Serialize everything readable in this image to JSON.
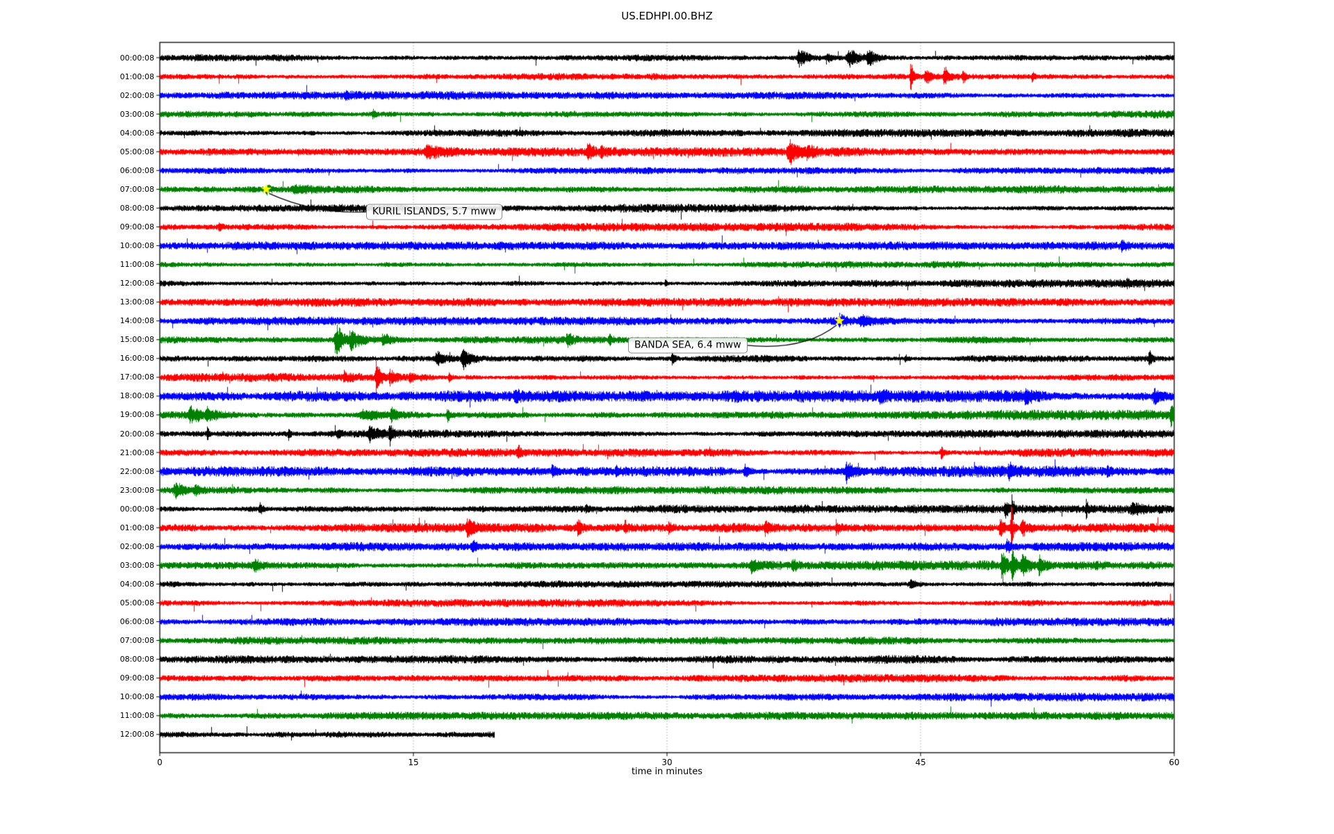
{
  "title": "US.EDHPI.00.BHZ",
  "chart_data": {
    "type": "line",
    "subtype": "helicorder-dayplot",
    "title": "US.EDHPI.00.BHZ",
    "xlabel": "time in minutes",
    "xlim": [
      0,
      60
    ],
    "x_ticks": [
      0,
      15,
      30,
      45,
      60
    ],
    "grid": "vertical dotted gridlines at x ticks",
    "legend": "none",
    "background_color": "#ffffff",
    "grid_color": "#9e9e9e",
    "frame_color": "#000000",
    "star_color": "#ffff00",
    "trace_color_cycle": [
      "#000000",
      "#ff0000",
      "#0000ff",
      "#008000"
    ],
    "row_duration_minutes": 60,
    "events_format": "[start_minute, relative_amplitude, duration_minutes]",
    "rows": [
      {
        "label": "00:00:08",
        "noise": 1.0,
        "events": [
          [
            37.8,
            2.2,
            1.2
          ],
          [
            39.5,
            1.2,
            0.5
          ],
          [
            40.7,
            2.8,
            1.0
          ],
          [
            41.9,
            2.2,
            0.7
          ]
        ]
      },
      {
        "label": "01:00:08",
        "noise": 1.0,
        "events": [
          [
            44.4,
            4.0,
            0.35
          ],
          [
            45.3,
            2.0,
            0.6
          ],
          [
            46.4,
            2.6,
            0.5
          ],
          [
            47.5,
            1.5,
            0.3
          ],
          [
            51.6,
            1.3,
            0.25
          ]
        ]
      },
      {
        "label": "02:00:08",
        "noise": 1.0,
        "events": [
          [
            11.0,
            0.7,
            0.3
          ]
        ]
      },
      {
        "label": "03:00:08",
        "noise": 1.0,
        "events": [
          [
            12.6,
            1.2,
            0.2
          ]
        ]
      },
      {
        "label": "04:00:08",
        "noise": 0.95,
        "events": []
      },
      {
        "label": "05:00:08",
        "noise": 1.1,
        "events": [
          [
            15.8,
            1.4,
            1.5
          ],
          [
            25.3,
            1.9,
            0.5
          ],
          [
            26.1,
            1.2,
            0.4
          ],
          [
            37.2,
            3.4,
            0.9
          ],
          [
            38.3,
            1.6,
            0.5
          ]
        ]
      },
      {
        "label": "06:00:08",
        "noise": 1.0,
        "events": []
      },
      {
        "label": "07:00:08",
        "noise": 1.0,
        "events": [
          [
            6.3,
            1.2,
            0.4
          ],
          [
            8.0,
            0.7,
            3.0
          ]
        ]
      },
      {
        "label": "08:00:08",
        "noise": 1.0,
        "events": []
      },
      {
        "label": "09:00:08",
        "noise": 1.0,
        "events": [
          [
            3.5,
            0.8,
            0.3
          ]
        ]
      },
      {
        "label": "10:00:08",
        "noise": 1.0,
        "events": [
          [
            56.9,
            1.3,
            0.3
          ]
        ]
      },
      {
        "label": "11:00:08",
        "noise": 1.0,
        "events": []
      },
      {
        "label": "12:00:08",
        "noise": 1.0,
        "events": [
          [
            29.9,
            1.0,
            0.15
          ],
          [
            57.2,
            0.9,
            0.2
          ]
        ]
      },
      {
        "label": "13:00:08",
        "noise": 1.0,
        "events": []
      },
      {
        "label": "14:00:08",
        "noise": 1.0,
        "events": [
          [
            40.2,
            1.3,
            0.6
          ],
          [
            41.5,
            0.8,
            2.0
          ]
        ]
      },
      {
        "label": "15:00:08",
        "noise": 1.15,
        "events": [
          [
            10.4,
            4.6,
            0.8
          ],
          [
            11.3,
            2.0,
            1.8
          ],
          [
            13.2,
            1.4,
            0.8
          ],
          [
            24.1,
            1.8,
            0.5
          ],
          [
            26.6,
            1.2,
            0.3
          ]
        ]
      },
      {
        "label": "16:00:08",
        "noise": 1.05,
        "events": [
          [
            16.4,
            1.6,
            1.2
          ],
          [
            17.9,
            3.0,
            0.7
          ],
          [
            30.3,
            1.9,
            0.25
          ],
          [
            44.1,
            0.9,
            0.3
          ],
          [
            58.5,
            2.3,
            0.3
          ]
        ]
      },
      {
        "label": "17:00:08",
        "noise": 1.0,
        "events": [
          [
            10.9,
            1.5,
            0.4
          ],
          [
            12.8,
            4.5,
            0.45
          ],
          [
            13.6,
            1.9,
            0.5
          ],
          [
            14.8,
            1.2,
            0.4
          ],
          [
            17.1,
            1.0,
            0.3
          ]
        ]
      },
      {
        "label": "18:00:08",
        "noise": 1.45,
        "events": [
          [
            21.0,
            1.2,
            0.5
          ],
          [
            28.5,
            0.9,
            0.4
          ],
          [
            34.0,
            1.2,
            0.4
          ],
          [
            42.6,
            1.4,
            0.5
          ],
          [
            51.2,
            1.3,
            0.6
          ],
          [
            58.8,
            1.9,
            1.0
          ]
        ]
      },
      {
        "label": "19:00:08",
        "noise": 1.2,
        "events": [
          [
            1.8,
            1.9,
            1.2
          ],
          [
            2.8,
            1.5,
            0.8
          ],
          [
            12.0,
            1.3,
            2.2
          ],
          [
            13.7,
            1.7,
            0.6
          ],
          [
            17.0,
            2.1,
            0.25
          ],
          [
            59.8,
            2.7,
            0.3
          ]
        ]
      },
      {
        "label": "20:00:08",
        "noise": 1.0,
        "events": [
          [
            2.8,
            1.8,
            0.18
          ],
          [
            7.6,
            1.8,
            0.18
          ],
          [
            10.5,
            1.0,
            0.3
          ],
          [
            12.4,
            1.7,
            0.9
          ],
          [
            13.6,
            2.5,
            0.3
          ]
        ]
      },
      {
        "label": "21:00:08",
        "noise": 1.0,
        "events": [
          [
            21.2,
            1.9,
            0.2
          ],
          [
            46.2,
            2.1,
            0.22
          ]
        ]
      },
      {
        "label": "22:00:08",
        "noise": 1.35,
        "events": [
          [
            23.2,
            1.4,
            0.5
          ],
          [
            27.0,
            1.0,
            0.4
          ],
          [
            34.6,
            1.5,
            0.5
          ],
          [
            40.6,
            2.7,
            0.6
          ],
          [
            50.2,
            1.7,
            0.5
          ],
          [
            56.0,
            1.0,
            0.4
          ]
        ]
      },
      {
        "label": "23:00:08",
        "noise": 1.0,
        "events": [
          [
            0.9,
            1.9,
            1.0
          ],
          [
            2.1,
            1.0,
            0.5
          ]
        ]
      },
      {
        "label": "00:00:08",
        "noise": 1.0,
        "events": [
          [
            5.9,
            1.6,
            0.3
          ],
          [
            25.2,
            1.3,
            0.2
          ],
          [
            50.0,
            2.0,
            0.4
          ],
          [
            50.4,
            4.5,
            0.18
          ],
          [
            54.8,
            3.5,
            0.12
          ],
          [
            57.5,
            1.2,
            1.5
          ]
        ]
      },
      {
        "label": "01:00:08",
        "noise": 1.1,
        "events": [
          [
            18.2,
            2.3,
            0.6
          ],
          [
            24.7,
            1.8,
            0.4
          ],
          [
            27.5,
            1.6,
            0.3
          ],
          [
            30.1,
            1.1,
            0.3
          ],
          [
            35.8,
            1.9,
            0.5
          ],
          [
            40.0,
            1.6,
            0.3
          ],
          [
            49.7,
            2.5,
            0.5
          ],
          [
            50.35,
            7.0,
            0.18
          ],
          [
            51.0,
            2.2,
            0.6
          ]
        ]
      },
      {
        "label": "02:00:08",
        "noise": 1.05,
        "events": [
          [
            18.5,
            1.5,
            0.4
          ],
          [
            50.1,
            1.7,
            0.5
          ]
        ]
      },
      {
        "label": "03:00:08",
        "noise": 1.15,
        "events": [
          [
            5.6,
            1.6,
            0.6
          ],
          [
            35.0,
            2.0,
            0.8
          ],
          [
            37.4,
            1.6,
            0.4
          ],
          [
            49.8,
            4.2,
            0.5
          ],
          [
            50.4,
            5.0,
            0.3
          ],
          [
            51.0,
            2.6,
            0.7
          ],
          [
            52.0,
            2.0,
            0.5
          ]
        ]
      },
      {
        "label": "04:00:08",
        "noise": 0.95,
        "events": [
          [
            44.4,
            1.1,
            0.6
          ]
        ]
      },
      {
        "label": "05:00:08",
        "noise": 0.95,
        "events": []
      },
      {
        "label": "06:00:08",
        "noise": 1.0,
        "events": []
      },
      {
        "label": "07:00:08",
        "noise": 0.95,
        "events": []
      },
      {
        "label": "08:00:08",
        "noise": 1.0,
        "events": []
      },
      {
        "label": "09:00:08",
        "noise": 0.95,
        "events": []
      },
      {
        "label": "10:00:08",
        "noise": 1.0,
        "events": []
      },
      {
        "label": "11:00:08",
        "noise": 0.95,
        "events": []
      },
      {
        "label": "12:00:08",
        "noise": 1.05,
        "events": [],
        "end_minute": 19.8
      }
    ],
    "annotations": [
      {
        "text": "KURIL ISLANDS, 5.7 mww",
        "star_row": 7,
        "star_minute": 6.3,
        "box_minute": 12.2,
        "box_row": 8.2,
        "leader_attach": "left"
      },
      {
        "text": "BANDA SEA, 6.4 mww",
        "star_row": 14,
        "star_minute": 40.2,
        "box_minute": 27.7,
        "box_row": 15.3,
        "leader_attach": "right"
      }
    ]
  }
}
